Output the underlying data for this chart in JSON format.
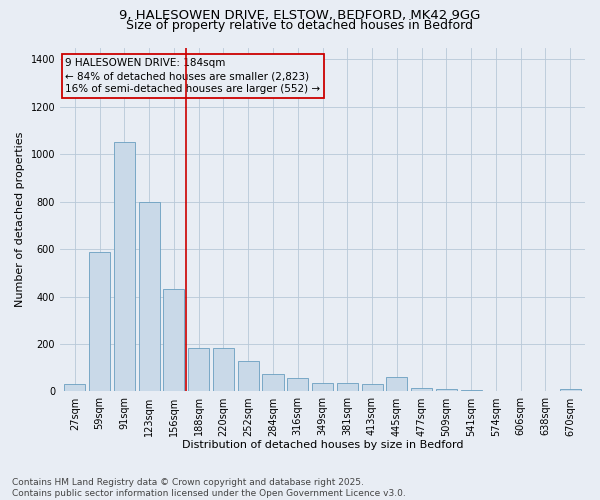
{
  "title_line1": "9, HALESOWEN DRIVE, ELSTOW, BEDFORD, MK42 9GG",
  "title_line2": "Size of property relative to detached houses in Bedford",
  "xlabel": "Distribution of detached houses by size in Bedford",
  "ylabel": "Number of detached properties",
  "categories": [
    "27sqm",
    "59sqm",
    "91sqm",
    "123sqm",
    "156sqm",
    "188sqm",
    "220sqm",
    "252sqm",
    "284sqm",
    "316sqm",
    "349sqm",
    "381sqm",
    "413sqm",
    "445sqm",
    "477sqm",
    "509sqm",
    "541sqm",
    "574sqm",
    "606sqm",
    "638sqm",
    "670sqm"
  ],
  "values": [
    30,
    590,
    1050,
    800,
    430,
    185,
    185,
    130,
    75,
    55,
    35,
    35,
    30,
    60,
    15,
    10,
    5,
    0,
    0,
    0,
    12
  ],
  "bar_color": "#c9d9e8",
  "bar_edge_color": "#6a9fc0",
  "grid_color": "#b8c8d8",
  "background_color": "#e8edf4",
  "annotation_line1": "9 HALESOWEN DRIVE: 184sqm",
  "annotation_line2": "← 84% of detached houses are smaller (2,823)",
  "annotation_line3": "16% of semi-detached houses are larger (552) →",
  "annotation_box_color": "#cc0000",
  "vline_color": "#cc0000",
  "vline_x": 4.5,
  "ylim": [
    0,
    1450
  ],
  "yticks": [
    0,
    200,
    400,
    600,
    800,
    1000,
    1200,
    1400
  ],
  "footnote": "Contains HM Land Registry data © Crown copyright and database right 2025.\nContains public sector information licensed under the Open Government Licence v3.0.",
  "title_fontsize": 9.5,
  "subtitle_fontsize": 9,
  "axis_label_fontsize": 8,
  "tick_fontsize": 7,
  "annot_fontsize": 7.5,
  "footnote_fontsize": 6.5
}
